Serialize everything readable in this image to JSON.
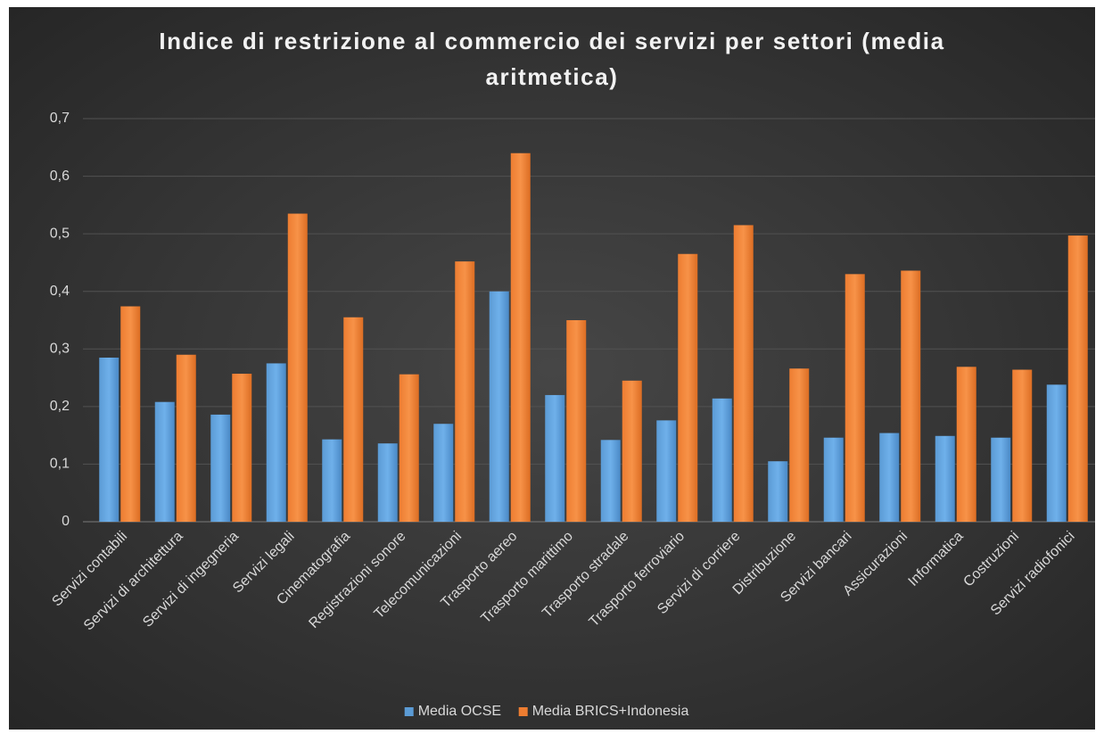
{
  "chart_data": {
    "type": "bar",
    "title": "Indice di restrizione al commercio dei servizi per settori (media aritmetica)",
    "categories": [
      "Servizi contabili",
      "Servizi di architettura",
      "Servizi di ingegneria",
      "Servizi legali",
      "Cinematografia",
      "Registrazioni sonore",
      "Telecomunicazioni",
      "Trasporto aereo",
      "Trasporto marittimo",
      "Trasporto stradale",
      "Trasporto ferroviario",
      "Servizi di corriere",
      "Distribuzione",
      "Servizi bancari",
      "Assicurazioni",
      "Informatica",
      "Costruzioni",
      "Servizi radiofonici"
    ],
    "series": [
      {
        "name": "Media OCSE",
        "color": "#5b9bd5",
        "values": [
          0.285,
          0.208,
          0.186,
          0.275,
          0.143,
          0.136,
          0.17,
          0.4,
          0.22,
          0.142,
          0.176,
          0.214,
          0.105,
          0.146,
          0.154,
          0.149,
          0.146,
          0.238
        ]
      },
      {
        "name": "Media BRICS+Indonesia",
        "color": "#ed7d31",
        "values": [
          0.374,
          0.29,
          0.257,
          0.535,
          0.355,
          0.256,
          0.452,
          0.64,
          0.35,
          0.245,
          0.465,
          0.515,
          0.266,
          0.43,
          0.436,
          0.269,
          0.264,
          0.497
        ]
      }
    ],
    "ylim": [
      0,
      0.7
    ],
    "yticks": [
      0,
      {
        "value": 0.1,
        "label": "0,1"
      },
      {
        "value": 0.2,
        "label": "0,2"
      },
      {
        "value": 0.3,
        "label": "0,3"
      },
      {
        "value": 0.4,
        "label": "0,4"
      },
      {
        "value": 0.5,
        "label": "0,5"
      },
      {
        "value": 0.6,
        "label": "0,6"
      },
      {
        "value": 0.7,
        "label": "0,7"
      }
    ],
    "grid": true,
    "legend": "bottom"
  }
}
